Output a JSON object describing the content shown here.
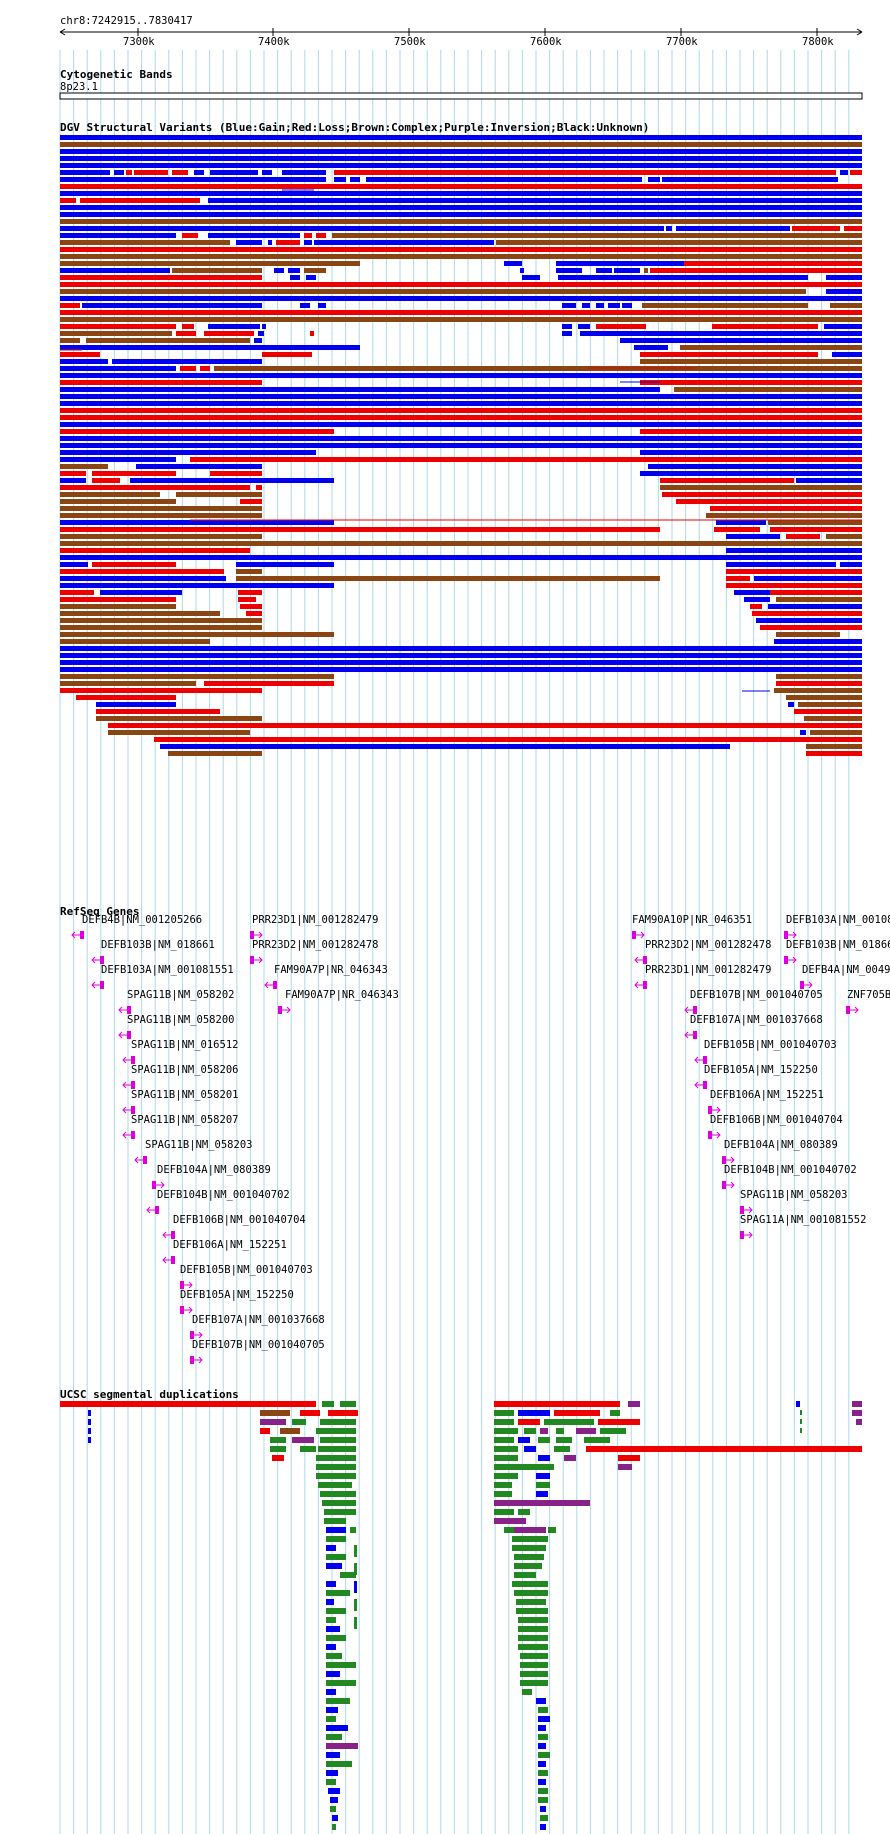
{
  "ruler": {
    "locus": "chr8:7242915..7830417",
    "ticks": [
      "7300k",
      "7400k",
      "7500k",
      "7600k",
      "7700k",
      "7800k"
    ]
  },
  "tracks": {
    "cytoband": {
      "title": "Cytogenetic Bands",
      "band": "8p23.1"
    },
    "dgv": {
      "title": "DGV Structural Variants (Blue:Gain;Red:Loss;Brown:Complex;Purple:Inversion;Black:Unknown)"
    },
    "refseq": {
      "title": "RefSeq Genes"
    },
    "segdup": {
      "title": "UCSC segmental duplications"
    }
  },
  "colors": {
    "gain": "#0000ee",
    "loss": "#ee0000",
    "complex": "#8b4513",
    "inversion": "#882288",
    "gene": "#dd00dd",
    "segdup_green": "#228822",
    "gridline": "#add8e6"
  },
  "genes": [
    {
      "label": "DEFB4B|NM_001205266",
      "strand": "-"
    },
    {
      "label": "DEFB103B|NM_018661",
      "strand": "-"
    },
    {
      "label": "DEFB103A|NM_001081551",
      "strand": "-"
    },
    {
      "label": "SPAG11B|NM_058202",
      "strand": "-"
    },
    {
      "label": "SPAG11B|NM_058200",
      "strand": "-"
    },
    {
      "label": "SPAG11B|NM_016512",
      "strand": "-"
    },
    {
      "label": "SPAG11B|NM_058206",
      "strand": "-"
    },
    {
      "label": "SPAG11B|NM_058201",
      "strand": "-"
    },
    {
      "label": "SPAG11B|NM_058207",
      "strand": "-"
    },
    {
      "label": "SPAG11B|NM_058203",
      "strand": "-"
    },
    {
      "label": "DEFB104A|NM_080389",
      "strand": "+"
    },
    {
      "label": "DEFB104B|NM_001040702",
      "strand": "-"
    },
    {
      "label": "DEFB106B|NM_001040704",
      "strand": "-"
    },
    {
      "label": "DEFB106A|NM_152251",
      "strand": "-"
    },
    {
      "label": "DEFB105B|NM_001040703",
      "strand": "+"
    },
    {
      "label": "DEFB105A|NM_152250",
      "strand": "+"
    },
    {
      "label": "DEFB107A|NM_001037668",
      "strand": "+"
    },
    {
      "label": "DEFB107B|NM_001040705",
      "strand": "+"
    },
    {
      "label": "PRR23D1|NM_001282479",
      "strand": "+"
    },
    {
      "label": "PRR23D2|NM_001282478",
      "strand": "+"
    },
    {
      "label": "FAM90A7P|NR_046343",
      "strand": "-"
    },
    {
      "label": "FAM90A7P|NR_046343",
      "strand": "+"
    },
    {
      "label": "FAM90A10P|NR_046351",
      "strand": "+"
    },
    {
      "label": "PRR23D2|NM_001282478",
      "strand": "-"
    },
    {
      "label": "PRR23D1|NM_001282479",
      "strand": "-"
    },
    {
      "label": "DEFB107B|NM_001040705",
      "strand": "-"
    },
    {
      "label": "DEFB107A|NM_001037668",
      "strand": "-"
    },
    {
      "label": "DEFB105B|NM_001040703",
      "strand": "-"
    },
    {
      "label": "DEFB105A|NM_152250",
      "strand": "-"
    },
    {
      "label": "DEFB106A|NM_152251",
      "strand": "+"
    },
    {
      "label": "DEFB106B|NM_001040704",
      "strand": "+"
    },
    {
      "label": "DEFB104A|NM_080389",
      "strand": "+"
    },
    {
      "label": "DEFB104B|NM_001040702",
      "strand": "+"
    },
    {
      "label": "SPAG11B|NM_058203",
      "strand": "+"
    },
    {
      "label": "SPAG11A|NM_001081552",
      "strand": "+"
    },
    {
      "label": "DEFB103A|NM_00108",
      "strand": "+"
    },
    {
      "label": "DEFB103B|NM_01866",
      "strand": "+"
    },
    {
      "label": "DEFB4A|NM_0049",
      "strand": "+"
    },
    {
      "label": "ZNF705B",
      "strand": "+"
    }
  ]
}
